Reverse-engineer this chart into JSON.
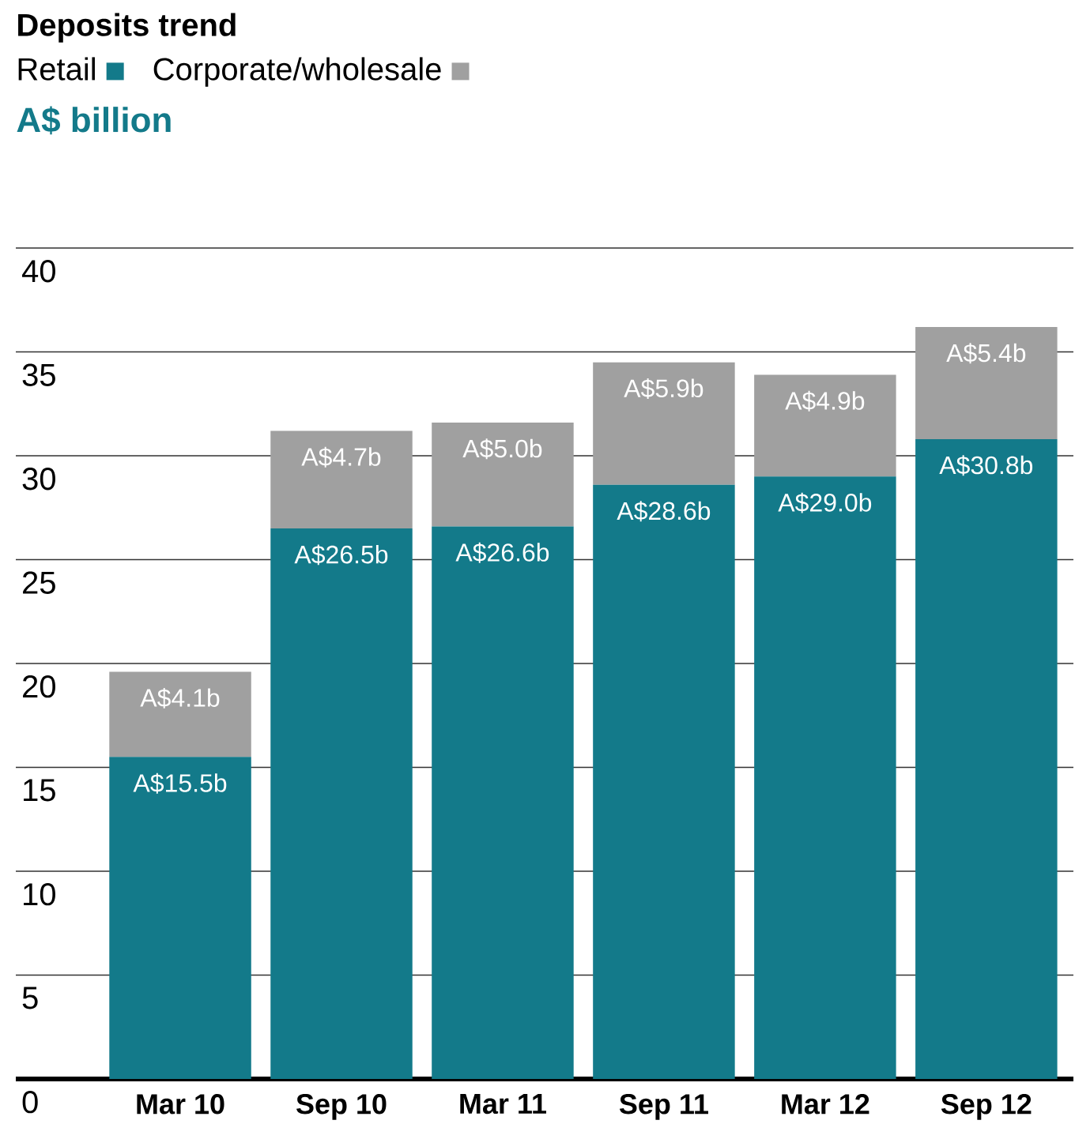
{
  "chart_data": {
    "type": "bar",
    "title": "Deposits trend",
    "ylabel": "A$ billion",
    "stacked": true,
    "legend": "top left",
    "grid": "y",
    "categories": [
      "Mar 10",
      "Sep 10",
      "Mar 11",
      "Sep 11",
      "Mar 12",
      "Sep 12"
    ],
    "series": [
      {
        "name": "Retail",
        "color": "#137a8a",
        "values": [
          15.5,
          26.5,
          26.6,
          28.6,
          29.0,
          30.8
        ],
        "value_labels": [
          "A$15.5b",
          "A$26.5b",
          "A$26.6b",
          "A$28.6b",
          "A$29.0b",
          "A$30.8b"
        ]
      },
      {
        "name": "Corporate/wholesale",
        "color": "#a0a0a0",
        "values": [
          4.1,
          4.7,
          5.0,
          5.9,
          4.9,
          5.4
        ],
        "value_labels": [
          "A$4.1b",
          "A$4.7b",
          "A$5.0b",
          "A$5.9b",
          "A$4.9b",
          "A$5.4b"
        ]
      }
    ],
    "ylim": [
      0,
      40
    ],
    "yticks": [
      0,
      5,
      10,
      15,
      20,
      25,
      30,
      35,
      40
    ]
  }
}
